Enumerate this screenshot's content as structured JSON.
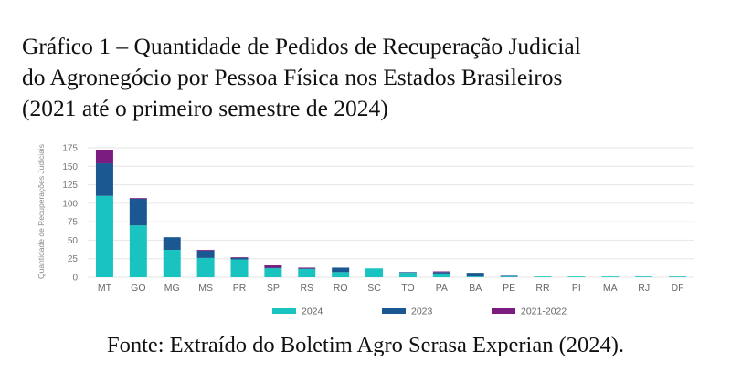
{
  "title": {
    "line1": "Gráfico 1 – Quantidade de Pedidos de Recuperação Judicial",
    "line2": "do Agronegócio por Pessoa Física nos Estados Brasileiros",
    "line3": "(2021 até o primeiro semestre de 2024)"
  },
  "source": "Fonte: Extraído do Boletim Agro Serasa Experian (2024).",
  "chart_data": {
    "type": "bar",
    "stacked": true,
    "ylabel": "Quantidade de Recuperações Judiciais",
    "ylim": [
      0,
      175
    ],
    "yticks": [
      0,
      25,
      50,
      75,
      100,
      125,
      150,
      175
    ],
    "grid": true,
    "legend_position": "bottom",
    "categories": [
      "MT",
      "GO",
      "MG",
      "MS",
      "PR",
      "SP",
      "RS",
      "RO",
      "SC",
      "TO",
      "PA",
      "BA",
      "PE",
      "RR",
      "PI",
      "MA",
      "RJ",
      "DF"
    ],
    "series": [
      {
        "name": "2024",
        "color": "#19c3c0",
        "values": [
          110,
          70,
          37,
          26,
          24,
          12,
          11,
          7,
          12,
          6,
          5,
          1,
          1,
          1,
          1,
          1,
          1,
          1
        ]
      },
      {
        "name": "2023",
        "color": "#1b5791",
        "values": [
          44,
          36,
          17,
          10,
          2,
          1,
          1,
          6,
          0,
          1,
          2,
          5,
          1,
          0,
          0,
          0,
          0,
          0
        ]
      },
      {
        "name": "2021-2022",
        "color": "#7b1d80",
        "values": [
          18,
          1,
          0,
          1,
          1,
          3,
          1,
          0,
          0,
          0,
          1,
          0,
          0,
          0,
          0,
          0,
          0,
          0
        ]
      }
    ]
  }
}
